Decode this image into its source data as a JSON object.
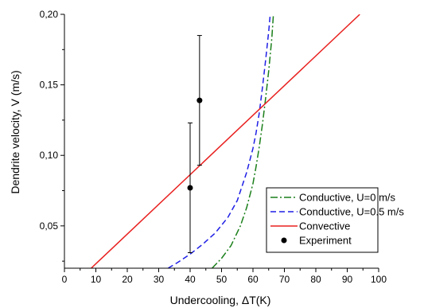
{
  "chart_data": {
    "type": "line",
    "xlabel": "Undercooling, ΔT(K)",
    "ylabel": "Dendrite velocity, V (m/s)",
    "xlim": [
      0,
      100
    ],
    "ylim": [
      0.02,
      0.2
    ],
    "x_ticks": [
      0,
      10,
      20,
      30,
      40,
      50,
      60,
      70,
      80,
      90,
      100
    ],
    "x_tick_labels": [
      "0",
      "10",
      "20",
      "30",
      "40",
      "50",
      "60",
      "70",
      "80",
      "90",
      "100"
    ],
    "y_ticks": [
      0.05,
      0.1,
      0.15,
      0.2
    ],
    "y_tick_labels": [
      "0,05",
      "0,10",
      "0,15",
      "0,20"
    ],
    "grid": false,
    "legend_position": "bottom-right",
    "series": [
      {
        "name": "Conductive, U=0 m/s",
        "style": "dash-dot",
        "color": "#1a7f1a",
        "x": [
          47,
          50,
          53,
          56,
          58,
          60,
          61,
          62,
          63,
          64,
          65,
          66,
          66.5
        ],
        "y": [
          0.02,
          0.027,
          0.036,
          0.05,
          0.063,
          0.08,
          0.092,
          0.106,
          0.122,
          0.14,
          0.16,
          0.183,
          0.2
        ]
      },
      {
        "name": "Conductive, U=0.5 m/s",
        "style": "dashed",
        "color": "#1f1fe6",
        "x": [
          33,
          36,
          40,
          44,
          48,
          52,
          55,
          58,
          60,
          61,
          62,
          63,
          64,
          65,
          65.5
        ],
        "y": [
          0.02,
          0.024,
          0.03,
          0.037,
          0.045,
          0.056,
          0.068,
          0.088,
          0.105,
          0.116,
          0.13,
          0.148,
          0.167,
          0.188,
          0.2
        ]
      },
      {
        "name": "Convective",
        "style": "solid",
        "color": "#e8201f",
        "x": [
          8.5,
          94
        ],
        "y": [
          0.02,
          0.2
        ]
      },
      {
        "name": "Experiment",
        "style": "marker",
        "color": "#000000",
        "x": [
          40,
          43
        ],
        "y": [
          0.077,
          0.139
        ],
        "err_low": [
          0.031,
          0.093
        ],
        "err_high": [
          0.123,
          0.185
        ]
      }
    ]
  }
}
